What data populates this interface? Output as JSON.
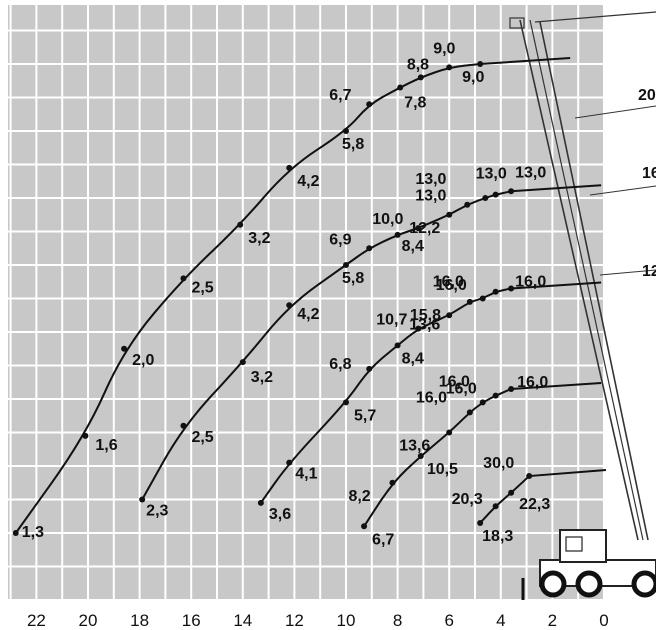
{
  "chart_data": {
    "type": "line",
    "title": "",
    "xlabel": "",
    "ylabel": "",
    "x_axis": {
      "reversed": true,
      "range": [
        0,
        24
      ],
      "ticks": [
        22,
        20,
        18,
        16,
        14,
        12,
        10,
        8,
        6,
        4,
        2,
        0
      ]
    },
    "grid": true,
    "boom_labels": [
      "20",
      "16",
      "12"
    ],
    "series": [
      {
        "points": [
          {
            "x": 22.8,
            "y": 2.0,
            "label": "1,3"
          },
          {
            "x": 20.1,
            "y": 4.9,
            "label": "1,6"
          },
          {
            "x": 18.6,
            "y": 7.5,
            "label": "2,0"
          },
          {
            "x": 16.3,
            "y": 9.6,
            "label": "2,5"
          },
          {
            "x": 14.1,
            "y": 11.2,
            "label": "3,2"
          },
          {
            "x": 12.2,
            "y": 12.9,
            "label": "4,2"
          },
          {
            "x": 10.0,
            "y": 14.0,
            "label": "5,8"
          },
          {
            "x": 9.1,
            "y": 14.8,
            "label": "6,7"
          },
          {
            "x": 7.9,
            "y": 15.3,
            "label": "7,8"
          },
          {
            "x": 7.1,
            "y": 15.6,
            "label": "8,8"
          },
          {
            "x": 6.0,
            "y": 15.9,
            "label": "9,0"
          },
          {
            "x": 4.8,
            "y": 16.0,
            "label": "9,0"
          }
        ]
      },
      {
        "points": [
          {
            "x": 17.9,
            "y": 3.0,
            "label": "2,3"
          },
          {
            "x": 16.3,
            "y": 5.2,
            "label": "2,5"
          },
          {
            "x": 14.0,
            "y": 7.1,
            "label": "3,2"
          },
          {
            "x": 12.2,
            "y": 8.8,
            "label": "4,2"
          },
          {
            "x": 10.0,
            "y": 10.0,
            "label": "5,8"
          },
          {
            "x": 9.1,
            "y": 10.5,
            "label": "6,9"
          },
          {
            "x": 8.0,
            "y": 10.9,
            "label": "8,4"
          },
          {
            "x": 7.2,
            "y": 11.1,
            "label": "10,0"
          },
          {
            "x": 6.0,
            "y": 11.5,
            "label": "12,2"
          },
          {
            "x": 5.3,
            "y": 11.8,
            "label": "13,0"
          },
          {
            "x": 4.6,
            "y": 12.0,
            "label": "13,0"
          },
          {
            "x": 4.2,
            "y": 12.1,
            "label": "13,0"
          },
          {
            "x": 3.6,
            "y": 12.2,
            "label": "13,0"
          }
        ]
      },
      {
        "points": [
          {
            "x": 13.3,
            "y": 2.9,
            "label": "3,6"
          },
          {
            "x": 12.2,
            "y": 4.1,
            "label": "4,1"
          },
          {
            "x": 10.0,
            "y": 5.9,
            "label": "5,7"
          },
          {
            "x": 9.1,
            "y": 6.9,
            "label": "6,8"
          },
          {
            "x": 8.0,
            "y": 7.6,
            "label": "8,4"
          },
          {
            "x": 7.2,
            "y": 8.1,
            "label": "10,7"
          },
          {
            "x": 6.0,
            "y": 8.5,
            "label": "13,6"
          },
          {
            "x": 5.2,
            "y": 8.9,
            "label": "15,8"
          },
          {
            "x": 4.7,
            "y": 9.0,
            "label": "16,0"
          },
          {
            "x": 4.2,
            "y": 9.2,
            "label": "16,0"
          },
          {
            "x": 3.6,
            "y": 9.3,
            "label": "16,0"
          }
        ]
      },
      {
        "points": [
          {
            "x": 9.3,
            "y": 2.2,
            "label": "6,7"
          },
          {
            "x": 8.2,
            "y": 3.5,
            "label": "8,2"
          },
          {
            "x": 7.1,
            "y": 4.3,
            "label": "10,5"
          },
          {
            "x": 6.0,
            "y": 5.0,
            "label": "13,6"
          },
          {
            "x": 5.2,
            "y": 5.6,
            "label": "16,0"
          },
          {
            "x": 4.7,
            "y": 5.9,
            "label": "16,0"
          },
          {
            "x": 4.2,
            "y": 6.1,
            "label": "16,0"
          },
          {
            "x": 3.6,
            "y": 6.3,
            "label": "16,0"
          }
        ]
      },
      {
        "points": [
          {
            "x": 4.8,
            "y": 2.3,
            "label": "18,3"
          },
          {
            "x": 4.2,
            "y": 2.8,
            "label": "20,3"
          },
          {
            "x": 3.6,
            "y": 3.2,
            "label": "22,3"
          },
          {
            "x": 2.9,
            "y": 3.7,
            "label": "30,0"
          }
        ]
      }
    ]
  }
}
